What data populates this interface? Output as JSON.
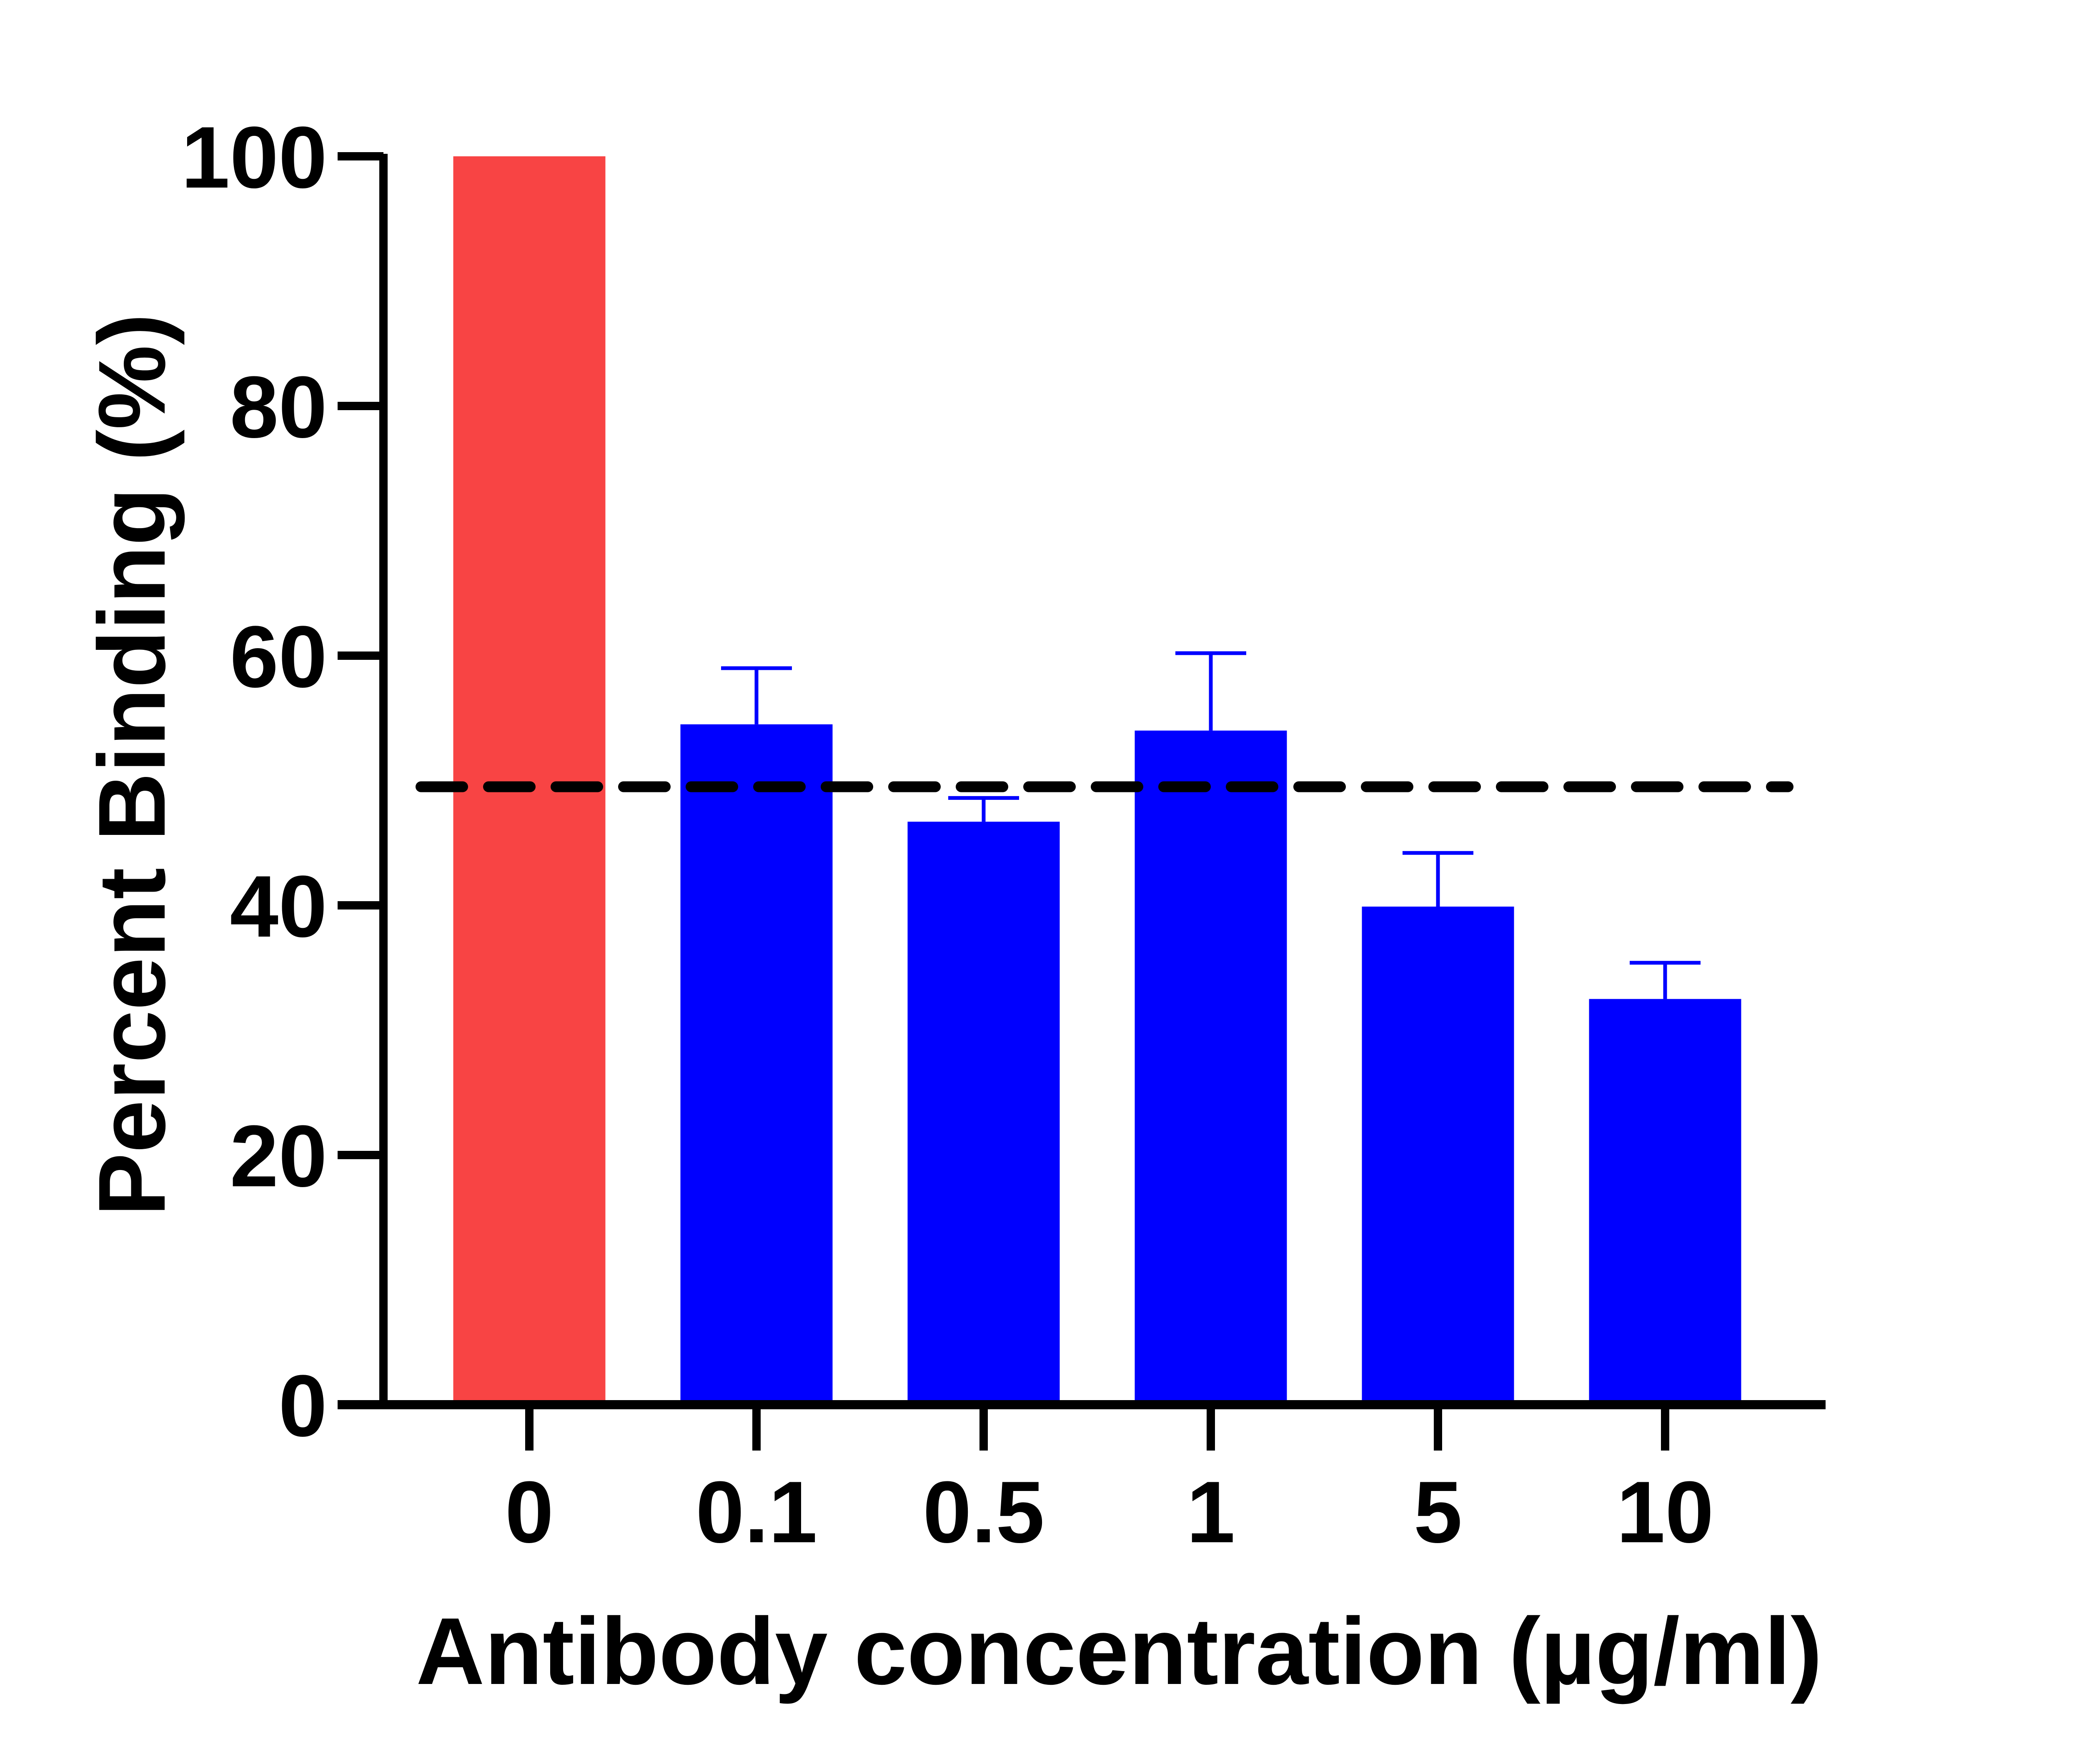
{
  "chart_data": {
    "type": "bar",
    "categories": [
      "0",
      "0.1",
      "0.5",
      "1",
      "5",
      "10"
    ],
    "values": [
      100,
      54.5,
      46.7,
      54.0,
      39.9,
      32.5
    ],
    "error_upper": [
      0,
      4.5,
      1.9,
      6.2,
      4.3,
      2.9
    ],
    "bar_colors": [
      "#F84444",
      "#0000FF",
      "#0000FF",
      "#0000FF",
      "#0000FF",
      "#0000FF"
    ],
    "error_color": "#0000FF",
    "reference_line": {
      "y": 49.5,
      "style": "dashed",
      "color": "#000000"
    },
    "title": "",
    "xlabel": "Antibody concentration (µg/ml)",
    "ylabel": "Percent Binding (%)",
    "ylim": [
      0,
      100
    ],
    "yticks": [
      "0",
      "20",
      "40",
      "60",
      "80",
      "100"
    ],
    "grid": false,
    "legend": "none"
  }
}
